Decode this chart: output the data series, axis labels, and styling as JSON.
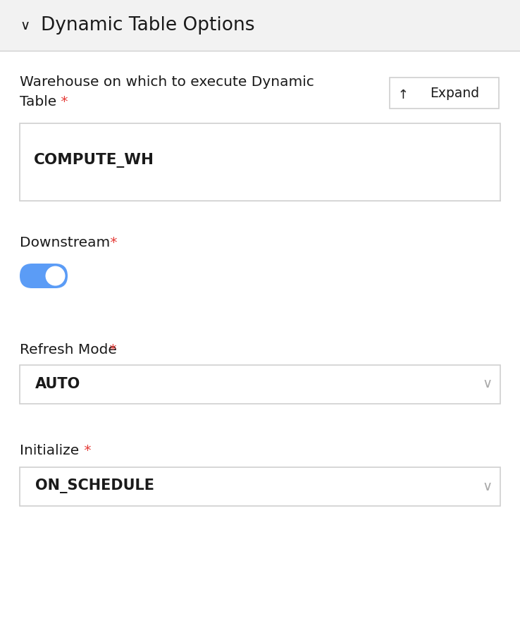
{
  "bg_color": "#ffffff",
  "header_bg": "#f2f2f2",
  "border_color": "#d0d0d0",
  "text_dark": "#1a1a1a",
  "text_red": "#e53935",
  "text_gray": "#aaaaaa",
  "blue_toggle": "#5b9cf6",
  "white": "#ffffff",
  "title": "Dynamic Table Options",
  "warehouse_line1": "Warehouse on which to execute Dynamic",
  "warehouse_line2": "Table",
  "expand_btn_text": "Expand",
  "warehouse_value": "COMPUTE_WH",
  "downstream_label": "Downstream",
  "refresh_label": "Refresh Mode",
  "refresh_value": "AUTO",
  "initialize_label": "Initialize",
  "initialize_value": "ON_SCHEDULE",
  "fig_w": 7.38,
  "fig_h": 8.94,
  "dpi": 100
}
